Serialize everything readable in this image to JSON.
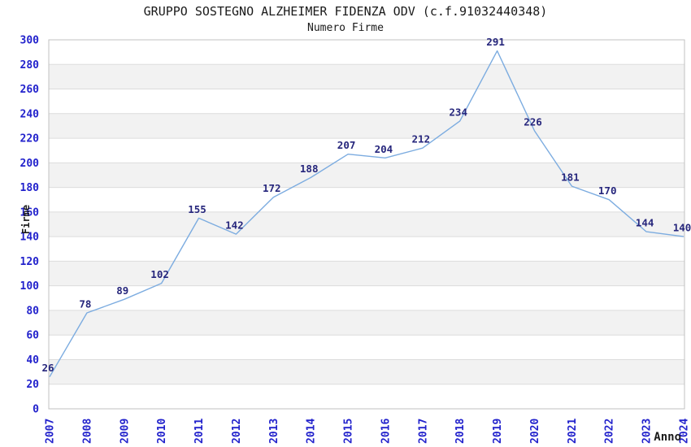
{
  "header": {
    "title": "GRUPPO SOSTEGNO ALZHEIMER FIDENZA ODV (c.f.91032440348)",
    "subtitle": "Numero Firme"
  },
  "chart_data": {
    "type": "line",
    "title": "GRUPPO SOSTEGNO ALZHEIMER FIDENZA ODV (c.f.91032440348)",
    "subtitle": "Numero Firme",
    "xlabel": "Anno",
    "ylabel": "Firme",
    "categories": [
      "2007",
      "2008",
      "2009",
      "2010",
      "2011",
      "2012",
      "2013",
      "2014",
      "2015",
      "2016",
      "2017",
      "2018",
      "2019",
      "2020",
      "2021",
      "2022",
      "2023",
      "2024"
    ],
    "values": [
      26,
      78,
      89,
      102,
      155,
      142,
      172,
      188,
      207,
      204,
      212,
      234,
      291,
      226,
      181,
      170,
      144,
      140
    ],
    "ylim": [
      0,
      300
    ],
    "ytick_step": 20,
    "grid": true,
    "band_fill": "alternating horizontal bands every 20 units",
    "legend_position": "none",
    "data_labels_visible": true,
    "colors": {
      "line": "#7CACE0",
      "tick_label": "#2222CC",
      "point_label": "#26267C",
      "axis_title": "#1a1a1a",
      "title_text": "#1a1a1a",
      "band": "#f2f2f2",
      "grid_line": "#dcdcdc",
      "plot_border": "#c0c0c0",
      "background": "#ffffff"
    }
  }
}
